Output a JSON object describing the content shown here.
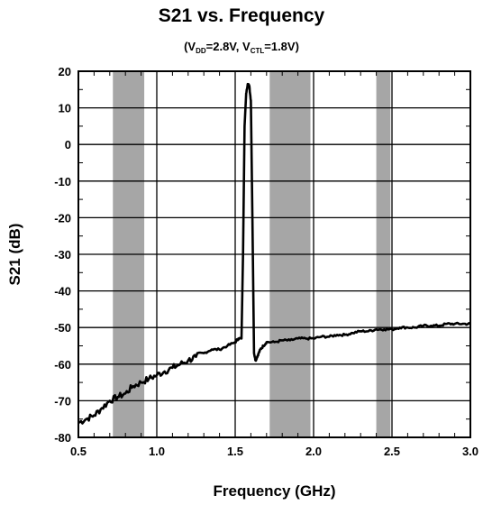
{
  "chart_data": {
    "type": "line",
    "title": "S21 vs. Frequency",
    "subtitle": {
      "open": "(V",
      "vdd_sub": "DD",
      "mid": "=2.8V, V",
      "ctl_sub": "CTL",
      "close": "=1.8V)"
    },
    "xlabel": "Frequency (GHz)",
    "ylabel": "S21 (dB)",
    "xlim": [
      0.5,
      3.0
    ],
    "ylim": [
      -80,
      20
    ],
    "xticks": [
      "0.5",
      "1.0",
      "1.5",
      "2.0",
      "2.5",
      "3.0"
    ],
    "yticks": [
      "20",
      "10",
      "0",
      "-10",
      "-20",
      "-30",
      "-40",
      "-50",
      "-60",
      "-70",
      "-80"
    ],
    "grid": true,
    "shaded_bands": [
      [
        0.72,
        0.92
      ],
      [
        1.72,
        1.98
      ],
      [
        2.4,
        2.49
      ]
    ],
    "band_color": "#a6a6a6",
    "line_color": "#000000",
    "series": [
      {
        "x": [
          0.5,
          0.55,
          0.6,
          0.65,
          0.7,
          0.75,
          0.8,
          0.85,
          0.9,
          0.95,
          1.0,
          1.05,
          1.1,
          1.15,
          1.2,
          1.25,
          1.3,
          1.35,
          1.4,
          1.45,
          1.5,
          1.52,
          1.54,
          1.55,
          1.56,
          1.57,
          1.58,
          1.59,
          1.6,
          1.61,
          1.62,
          1.63,
          1.64,
          1.65,
          1.66,
          1.68,
          1.7,
          1.75,
          1.8,
          1.85,
          1.9,
          1.95,
          2.0,
          2.05,
          2.1,
          2.15,
          2.2,
          2.25,
          2.3,
          2.35,
          2.4,
          2.45,
          2.5,
          2.55,
          2.6,
          2.65,
          2.7,
          2.75,
          2.8,
          2.85,
          2.9,
          2.95,
          3.0
        ],
        "y": [
          -76,
          -75,
          -74,
          -72,
          -70,
          -69,
          -68,
          -66,
          -65,
          -64,
          -63,
          -62,
          -61,
          -60,
          -59,
          -58,
          -57,
          -56,
          -56,
          -55,
          -54,
          -53,
          -53,
          -30,
          5,
          14,
          16.5,
          16,
          12,
          -20,
          -57,
          -59,
          -58,
          -57,
          -56,
          -55,
          -54,
          -54,
          -53.5,
          -53.5,
          -53,
          -53,
          -53,
          -52.5,
          -52.5,
          -52,
          -52,
          -51.5,
          -51,
          -51,
          -50.5,
          -50.5,
          -50.5,
          -50,
          -50,
          -50,
          -49.5,
          -49.5,
          -49.5,
          -49,
          -49,
          -49,
          -49
        ]
      }
    ]
  }
}
